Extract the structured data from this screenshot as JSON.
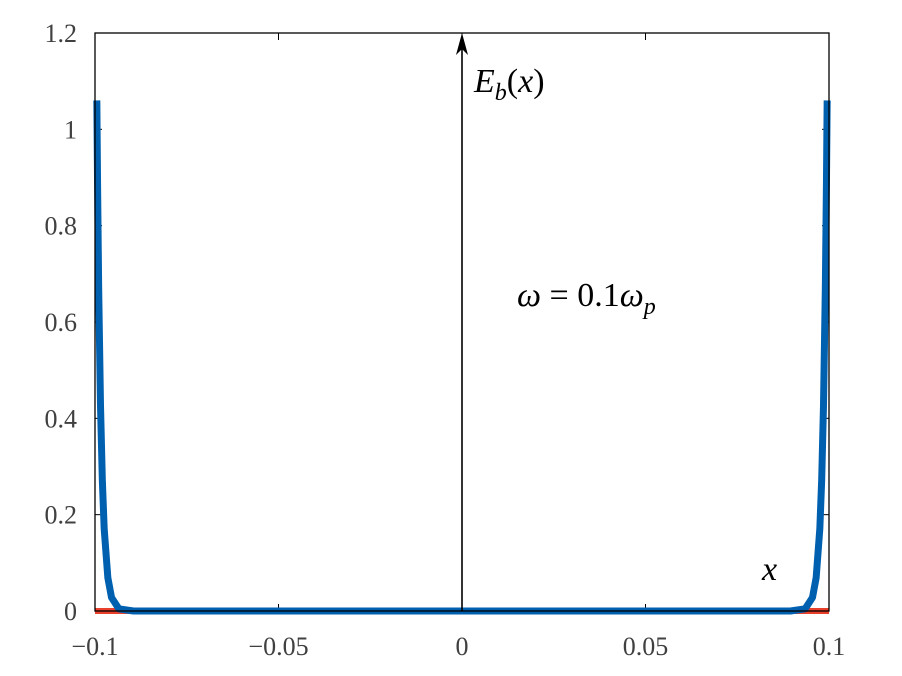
{
  "chart_data": {
    "type": "line",
    "title": "",
    "xlabel": "x",
    "ylabel": "E_b(x)",
    "xlim": [
      -0.1,
      0.1
    ],
    "ylim": [
      0,
      1.2
    ],
    "xticks": [
      "-0.1",
      "-0.05",
      "0",
      "0.05",
      "0.1"
    ],
    "xtick_values": [
      -0.1,
      -0.05,
      0,
      0.05,
      0.1
    ],
    "yticks": [
      "0",
      "0.2",
      "0.4",
      "0.6",
      "0.8",
      "1",
      "1.2"
    ],
    "ytick_values": [
      0,
      0.2,
      0.4,
      0.6,
      0.8,
      1,
      1.2
    ],
    "grid": false,
    "annotation": "ω = 0.1ω_p",
    "series": [
      {
        "color": "#0060b0",
        "x": [
          -0.0995,
          -0.0993,
          -0.099,
          -0.0985,
          -0.098,
          -0.0975,
          -0.0965,
          -0.0955,
          -0.0935,
          -0.0895,
          0,
          0.0895,
          0.0935,
          0.0955,
          0.0965,
          0.0975,
          0.098,
          0.0985,
          0.099,
          0.0993,
          0.0995
        ],
        "y": [
          1.06,
          0.885,
          0.67,
          0.426,
          0.271,
          0.171,
          0.069,
          0.028,
          0.0045,
          0,
          0,
          0,
          0.0045,
          0.028,
          0.069,
          0.171,
          0.271,
          0.426,
          0.67,
          0.885,
          1.06
        ]
      },
      {
        "color": "#e8402a",
        "x": [
          -0.1,
          0.1
        ],
        "y": [
          0,
          0
        ]
      }
    ]
  }
}
